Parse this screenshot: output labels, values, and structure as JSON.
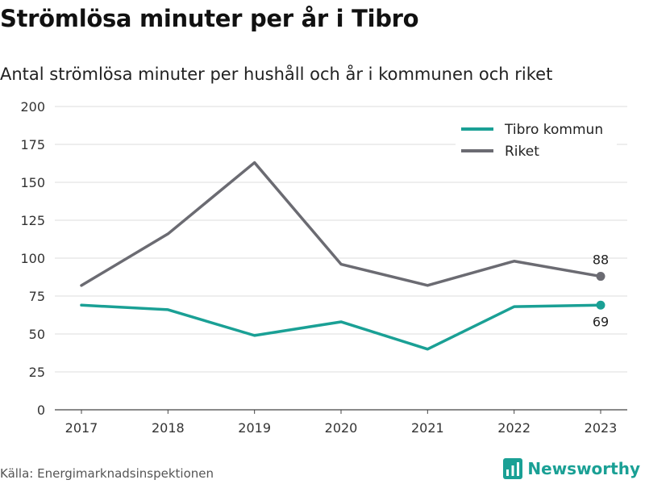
{
  "title": "Strömlösa minuter per år i Tibro",
  "subtitle": "Antal strömlösa minuter per hushåll och år i kommunen och riket",
  "source": "Källa: Energimarknadsinspektionen",
  "brand": {
    "name": "Newsworthy",
    "icon": "bar-chart-logo-icon"
  },
  "colors": {
    "tibro": "#1aa095",
    "riket": "#6b6b72",
    "grid": "#dddddd",
    "brand": "#1aa095"
  },
  "chart_data": {
    "type": "line",
    "title": "Strömlösa minuter per år i Tibro",
    "subtitle": "Antal strömlösa minuter per hushåll och år i kommunen och riket",
    "xlabel": "",
    "ylabel": "",
    "x": [
      "2017",
      "2018",
      "2019",
      "2020",
      "2021",
      "2022",
      "2023"
    ],
    "ylim": [
      0,
      200
    ],
    "yticks": [
      "0",
      "25",
      "50",
      "75",
      "100",
      "125",
      "150",
      "175",
      "200"
    ],
    "grid": true,
    "legend_position": "top-right",
    "series": [
      {
        "name": "Tibro kommun",
        "color": "#1aa095",
        "values": [
          69,
          66,
          49,
          58,
          40,
          68,
          69
        ],
        "end_label": "69"
      },
      {
        "name": "Riket",
        "color": "#6b6b72",
        "values": [
          82,
          116,
          163,
          96,
          82,
          98,
          88
        ],
        "end_label": "88"
      }
    ]
  }
}
